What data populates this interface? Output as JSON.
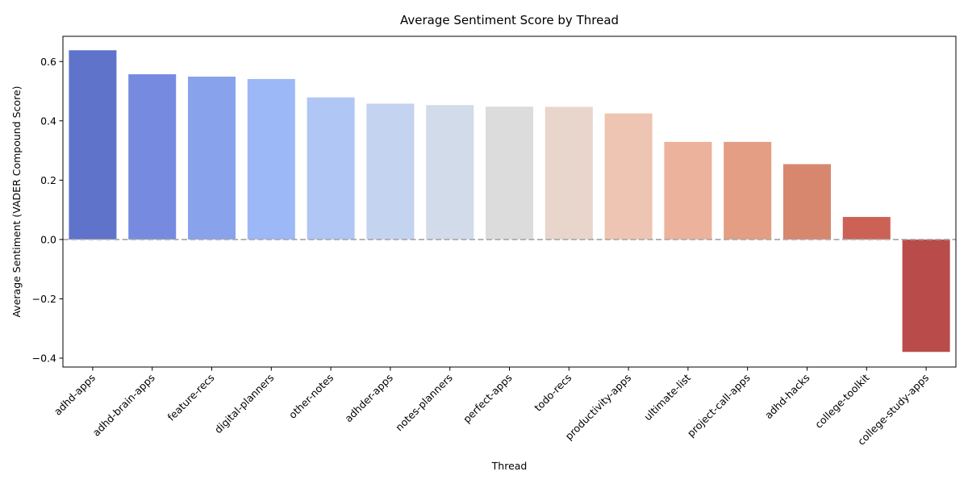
{
  "chart_data": {
    "type": "bar",
    "title": "Average Sentiment Score by Thread",
    "xlabel": "Thread",
    "ylabel": "Average Sentiment (VADER Compound Score)",
    "categories": [
      "adhd-apps",
      "adhd-brain-apps",
      "feature-recs",
      "digital-planners",
      "other-notes",
      "adhder-apps",
      "notes-planners",
      "perfect-apps",
      "todo-recs",
      "productivity-apps",
      "ultimate-list",
      "project-call-apps",
      "adhd-hacks",
      "college-toolkit",
      "college-study-apps"
    ],
    "values": [
      0.638,
      0.557,
      0.549,
      0.541,
      0.479,
      0.458,
      0.453,
      0.448,
      0.447,
      0.425,
      0.329,
      0.329,
      0.254,
      0.076,
      -0.379
    ],
    "colors": [
      "#6073cb",
      "#768bdf",
      "#88a3ec",
      "#9db8f6",
      "#b0c6f4",
      "#c3d3f0",
      "#d2dbe9",
      "#dddcdc",
      "#e8d5cb",
      "#eec5b2",
      "#edb29c",
      "#e49e83",
      "#d8876f",
      "#cc6255",
      "#b94c4a"
    ],
    "ylim": [
      -0.43,
      0.685
    ],
    "yticks": [
      -0.4,
      -0.2,
      0.0,
      0.2,
      0.4,
      0.6
    ],
    "ytick_labels": [
      "−0.4",
      "−0.2",
      "0.0",
      "0.2",
      "0.4",
      "0.6"
    ],
    "reference_line": 0,
    "grid": false,
    "legend": "none"
  }
}
